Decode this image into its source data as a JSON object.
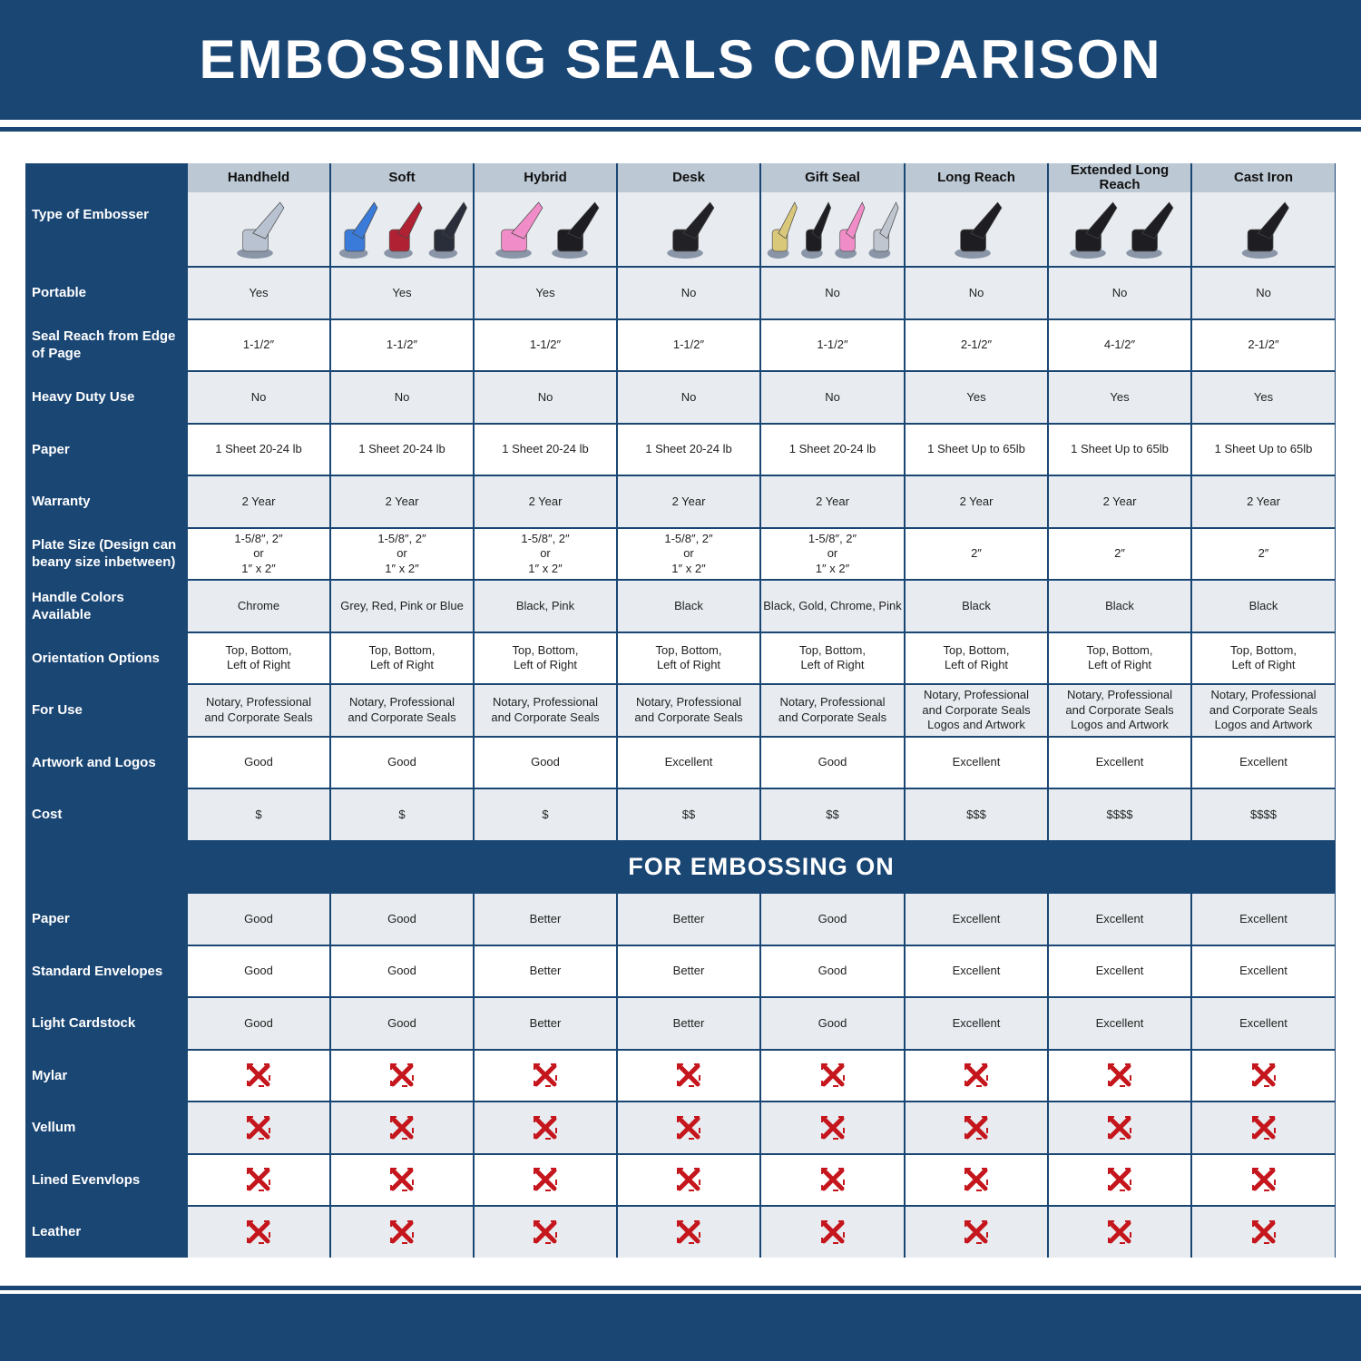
{
  "title": "EMBOSSING SEALS COMPARISON",
  "colors": {
    "brand": "#1a4674",
    "header_bg": "#bcc8d4",
    "row_alt": "#e8ecf0",
    "cross": "#c4161c"
  },
  "type_label": "Type of Embosser",
  "columns": [
    {
      "name": "Handheld",
      "handle_colors": [
        "#b8c2d0"
      ]
    },
    {
      "name": "Soft",
      "handle_colors": [
        "#3a7ad8",
        "#b02233",
        "#2a2e3a"
      ]
    },
    {
      "name": "Hybrid",
      "handle_colors": [
        "#f08cc8",
        "#1e1e22"
      ]
    },
    {
      "name": "Desk",
      "handle_colors": [
        "#222226"
      ]
    },
    {
      "name": "Gift Seal",
      "handle_colors": [
        "#d9c77a",
        "#1e1e22",
        "#f08cc8",
        "#c0c6d0"
      ]
    },
    {
      "name": "Long Reach",
      "handle_colors": [
        "#1e1e22"
      ]
    },
    {
      "name": "Extended Long Reach",
      "handle_colors": [
        "#1e1e22",
        "#1e1e22"
      ]
    },
    {
      "name": "Cast Iron",
      "handle_colors": [
        "#1e1e22"
      ]
    }
  ],
  "rows": [
    {
      "label": "Portable",
      "values": [
        "Yes",
        "Yes",
        "Yes",
        "No",
        "No",
        "No",
        "No",
        "No"
      ]
    },
    {
      "label": "Seal Reach from Edge of Page",
      "values": [
        "1-1/2″",
        "1-1/2″",
        "1-1/2″",
        "1-1/2″",
        "1-1/2″",
        "2-1/2″",
        "4-1/2″",
        "2-1/2″"
      ]
    },
    {
      "label": "Heavy Duty Use",
      "values": [
        "No",
        "No",
        "No",
        "No",
        "No",
        "Yes",
        "Yes",
        "Yes"
      ]
    },
    {
      "label": "Paper",
      "values": [
        "1 Sheet 20-24 lb",
        "1 Sheet 20-24 lb",
        "1 Sheet 20-24 lb",
        "1 Sheet 20-24 lb",
        "1 Sheet 20-24 lb",
        "1 Sheet Up to 65lb",
        "1 Sheet Up to 65lb",
        "1 Sheet Up to 65lb"
      ]
    },
    {
      "label": "Warranty",
      "values": [
        "2 Year",
        "2 Year",
        "2 Year",
        "2 Year",
        "2 Year",
        "2 Year",
        "2 Year",
        "2 Year"
      ]
    },
    {
      "label": "Plate Size (Design can beany size inbetween)",
      "values": [
        "1-5/8″, 2″\nor\n1″ x 2″",
        "1-5/8″, 2″\nor\n1″ x 2″",
        "1-5/8″, 2″\nor\n1″ x 2″",
        "1-5/8″, 2″\nor\n1″ x 2″",
        "1-5/8″, 2″\nor\n1″ x 2″",
        "2″",
        "2″",
        "2″"
      ]
    },
    {
      "label": "Handle Colors Available",
      "values": [
        "Chrome",
        "Grey, Red, Pink or Blue",
        "Black, Pink",
        "Black",
        "Black, Gold, Chrome, Pink",
        "Black",
        "Black",
        "Black"
      ]
    },
    {
      "label": "Orientation Options",
      "values": [
        "Top, Bottom,\nLeft of Right",
        "Top, Bottom,\nLeft of Right",
        "Top, Bottom,\nLeft of Right",
        "Top, Bottom,\nLeft of Right",
        "Top, Bottom,\nLeft of Right",
        "Top, Bottom,\nLeft of Right",
        "Top, Bottom,\nLeft of Right",
        "Top, Bottom,\nLeft of Right"
      ]
    },
    {
      "label": "For Use",
      "values": [
        "Notary, Professional\nand Corporate Seals",
        "Notary, Professional\nand Corporate Seals",
        "Notary, Professional\nand Corporate Seals",
        "Notary, Professional\nand Corporate Seals",
        "Notary, Professional\nand Corporate Seals",
        "Notary, Professional\nand Corporate Seals\nLogos and Artwork",
        "Notary, Professional\nand Corporate Seals\nLogos and Artwork",
        "Notary, Professional\nand Corporate Seals\nLogos and Artwork"
      ]
    },
    {
      "label": "Artwork and Logos",
      "values": [
        "Good",
        "Good",
        "Good",
        "Excellent",
        "Good",
        "Excellent",
        "Excellent",
        "Excellent"
      ]
    },
    {
      "label": "Cost",
      "values": [
        "$",
        "$",
        "$",
        "$$",
        "$$",
        "$$$",
        "$$$$",
        "$$$$"
      ]
    }
  ],
  "section_title": "FOR EMBOSSING ON",
  "embossing_rows": [
    {
      "label": "Paper",
      "values": [
        "Good",
        "Good",
        "Better",
        "Better",
        "Good",
        "Excellent",
        "Excellent",
        "Excellent"
      ]
    },
    {
      "label": "Standard Envelopes",
      "values": [
        "Good",
        "Good",
        "Better",
        "Better",
        "Good",
        "Excellent",
        "Excellent",
        "Excellent"
      ]
    },
    {
      "label": "Light Cardstock",
      "values": [
        "Good",
        "Good",
        "Better",
        "Better",
        "Good",
        "Excellent",
        "Excellent",
        "Excellent"
      ]
    },
    {
      "label": "Mylar",
      "values": [
        "x-icon",
        "x-icon",
        "x-icon",
        "x-icon",
        "x-icon",
        "x-icon",
        "x-icon",
        "x-icon"
      ]
    },
    {
      "label": "Vellum",
      "values": [
        "x-icon",
        "x-icon",
        "x-icon",
        "x-icon",
        "x-icon",
        "x-icon",
        "x-icon",
        "x-icon"
      ]
    },
    {
      "label": "Lined Evenvlops",
      "values": [
        "x-icon",
        "x-icon",
        "x-icon",
        "x-icon",
        "x-icon",
        "x-icon",
        "x-icon",
        "x-icon"
      ]
    },
    {
      "label": "Leather",
      "values": [
        "x-icon",
        "x-icon",
        "x-icon",
        "x-icon",
        "x-icon",
        "x-icon",
        "x-icon",
        "x-icon"
      ]
    }
  ]
}
